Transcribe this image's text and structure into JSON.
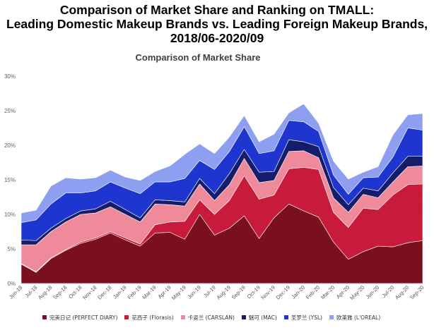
{
  "title_lines": [
    "Comparison of Market Share and Ranking on TMALL:",
    "Leading Domestic Makeup Brands vs. Leading Foreign Makeup Brands,",
    "2018/06-2020/09"
  ],
  "chart_data": {
    "type": "area",
    "stacked": true,
    "title": "Comparison of Market Share",
    "xlabel": "",
    "ylabel": "",
    "ylim": [
      0,
      30
    ],
    "yticks": [
      "0%",
      "5%",
      "10%",
      "15%",
      "20%",
      "25%",
      "30%"
    ],
    "grid": false,
    "legend_position": "bottom",
    "categories": [
      "Jun-18",
      "Jul-18",
      "Aug-18",
      "Sep-18",
      "Oct-18",
      "Nov-18",
      "Dec-18",
      "Jan-19",
      "Feb-19",
      "Mar-19",
      "Apr-19",
      "May-19",
      "Jun-19",
      "Jul-19",
      "Aug-19",
      "Sep-19",
      "Oct-19",
      "Nov-19",
      "Dec-19",
      "Jan-20",
      "Feb-20",
      "Mar-20",
      "Apr-20",
      "May-20",
      "Jun-20",
      "Jul-20",
      "Aug-20",
      "Sep-20"
    ],
    "series": [
      {
        "name": "完美日记 (PERFECT DIARY)",
        "color": "#7a0f1e",
        "values": [
          2.8,
          1.6,
          3.6,
          4.8,
          5.8,
          6.4,
          7.3,
          6.3,
          5.4,
          7.3,
          7.4,
          6.4,
          10.0,
          7.0,
          8.0,
          9.8,
          6.5,
          9.5,
          11.5,
          10.5,
          9.6,
          6.0,
          3.5,
          4.6,
          5.4,
          5.3,
          5.9,
          6.2
        ]
      },
      {
        "name": "花西子 (Florasis)",
        "color": "#c81a3a",
        "values": [
          0.1,
          0.1,
          0.1,
          0.1,
          0.2,
          0.2,
          0.2,
          0.3,
          0.3,
          1.2,
          1.5,
          2.6,
          2.1,
          3.0,
          4.0,
          5.8,
          5.7,
          3.3,
          5.1,
          6.3,
          6.9,
          4.3,
          4.6,
          6.3,
          5.3,
          7.5,
          8.4,
          8.2
        ]
      },
      {
        "name": "卡姿兰 (CARSLAN)",
        "color": "#ef8a9a",
        "values": [
          2.7,
          3.9,
          3.8,
          4.0,
          4.0,
          3.6,
          3.6,
          3.4,
          3.2,
          3.0,
          2.5,
          2.2,
          2.3,
          2.0,
          2.3,
          2.5,
          2.4,
          2.1,
          2.5,
          2.4,
          1.7,
          2.1,
          2.2,
          2.0,
          1.7,
          1.9,
          2.6,
          2.6
        ]
      },
      {
        "name": "魅可 (MAC)",
        "color": "#151d6a",
        "values": [
          0.7,
          0.6,
          0.5,
          0.5,
          0.5,
          0.6,
          0.8,
          0.7,
          0.6,
          0.6,
          0.6,
          0.6,
          0.8,
          1.0,
          1.6,
          1.3,
          1.5,
          1.3,
          1.7,
          1.3,
          1.6,
          1.5,
          1.1,
          0.9,
          1.0,
          1.3,
          1.5,
          1.4
        ]
      },
      {
        "name": "圣罗兰 (YSL)",
        "color": "#1f35d0",
        "values": [
          2.5,
          3.0,
          3.5,
          3.7,
          2.6,
          2.6,
          2.8,
          3.1,
          3.5,
          2.6,
          2.7,
          3.4,
          2.6,
          3.5,
          3.2,
          3.3,
          2.7,
          3.0,
          2.8,
          2.9,
          2.2,
          1.8,
          1.5,
          1.5,
          2.0,
          2.3,
          4.1,
          3.8
        ]
      },
      {
        "name": "欧莱雅 (L'OREAL)",
        "color": "#8e9ef0",
        "values": [
          1.4,
          1.4,
          2.6,
          2.2,
          2.0,
          1.9,
          1.7,
          1.6,
          1.9,
          1.5,
          2.3,
          3.5,
          2.4,
          2.3,
          2.1,
          1.6,
          1.7,
          2.4,
          1.1,
          2.6,
          1.2,
          2.0,
          2.2,
          0.8,
          1.5,
          3.2,
          1.9,
          2.4
        ]
      }
    ]
  }
}
